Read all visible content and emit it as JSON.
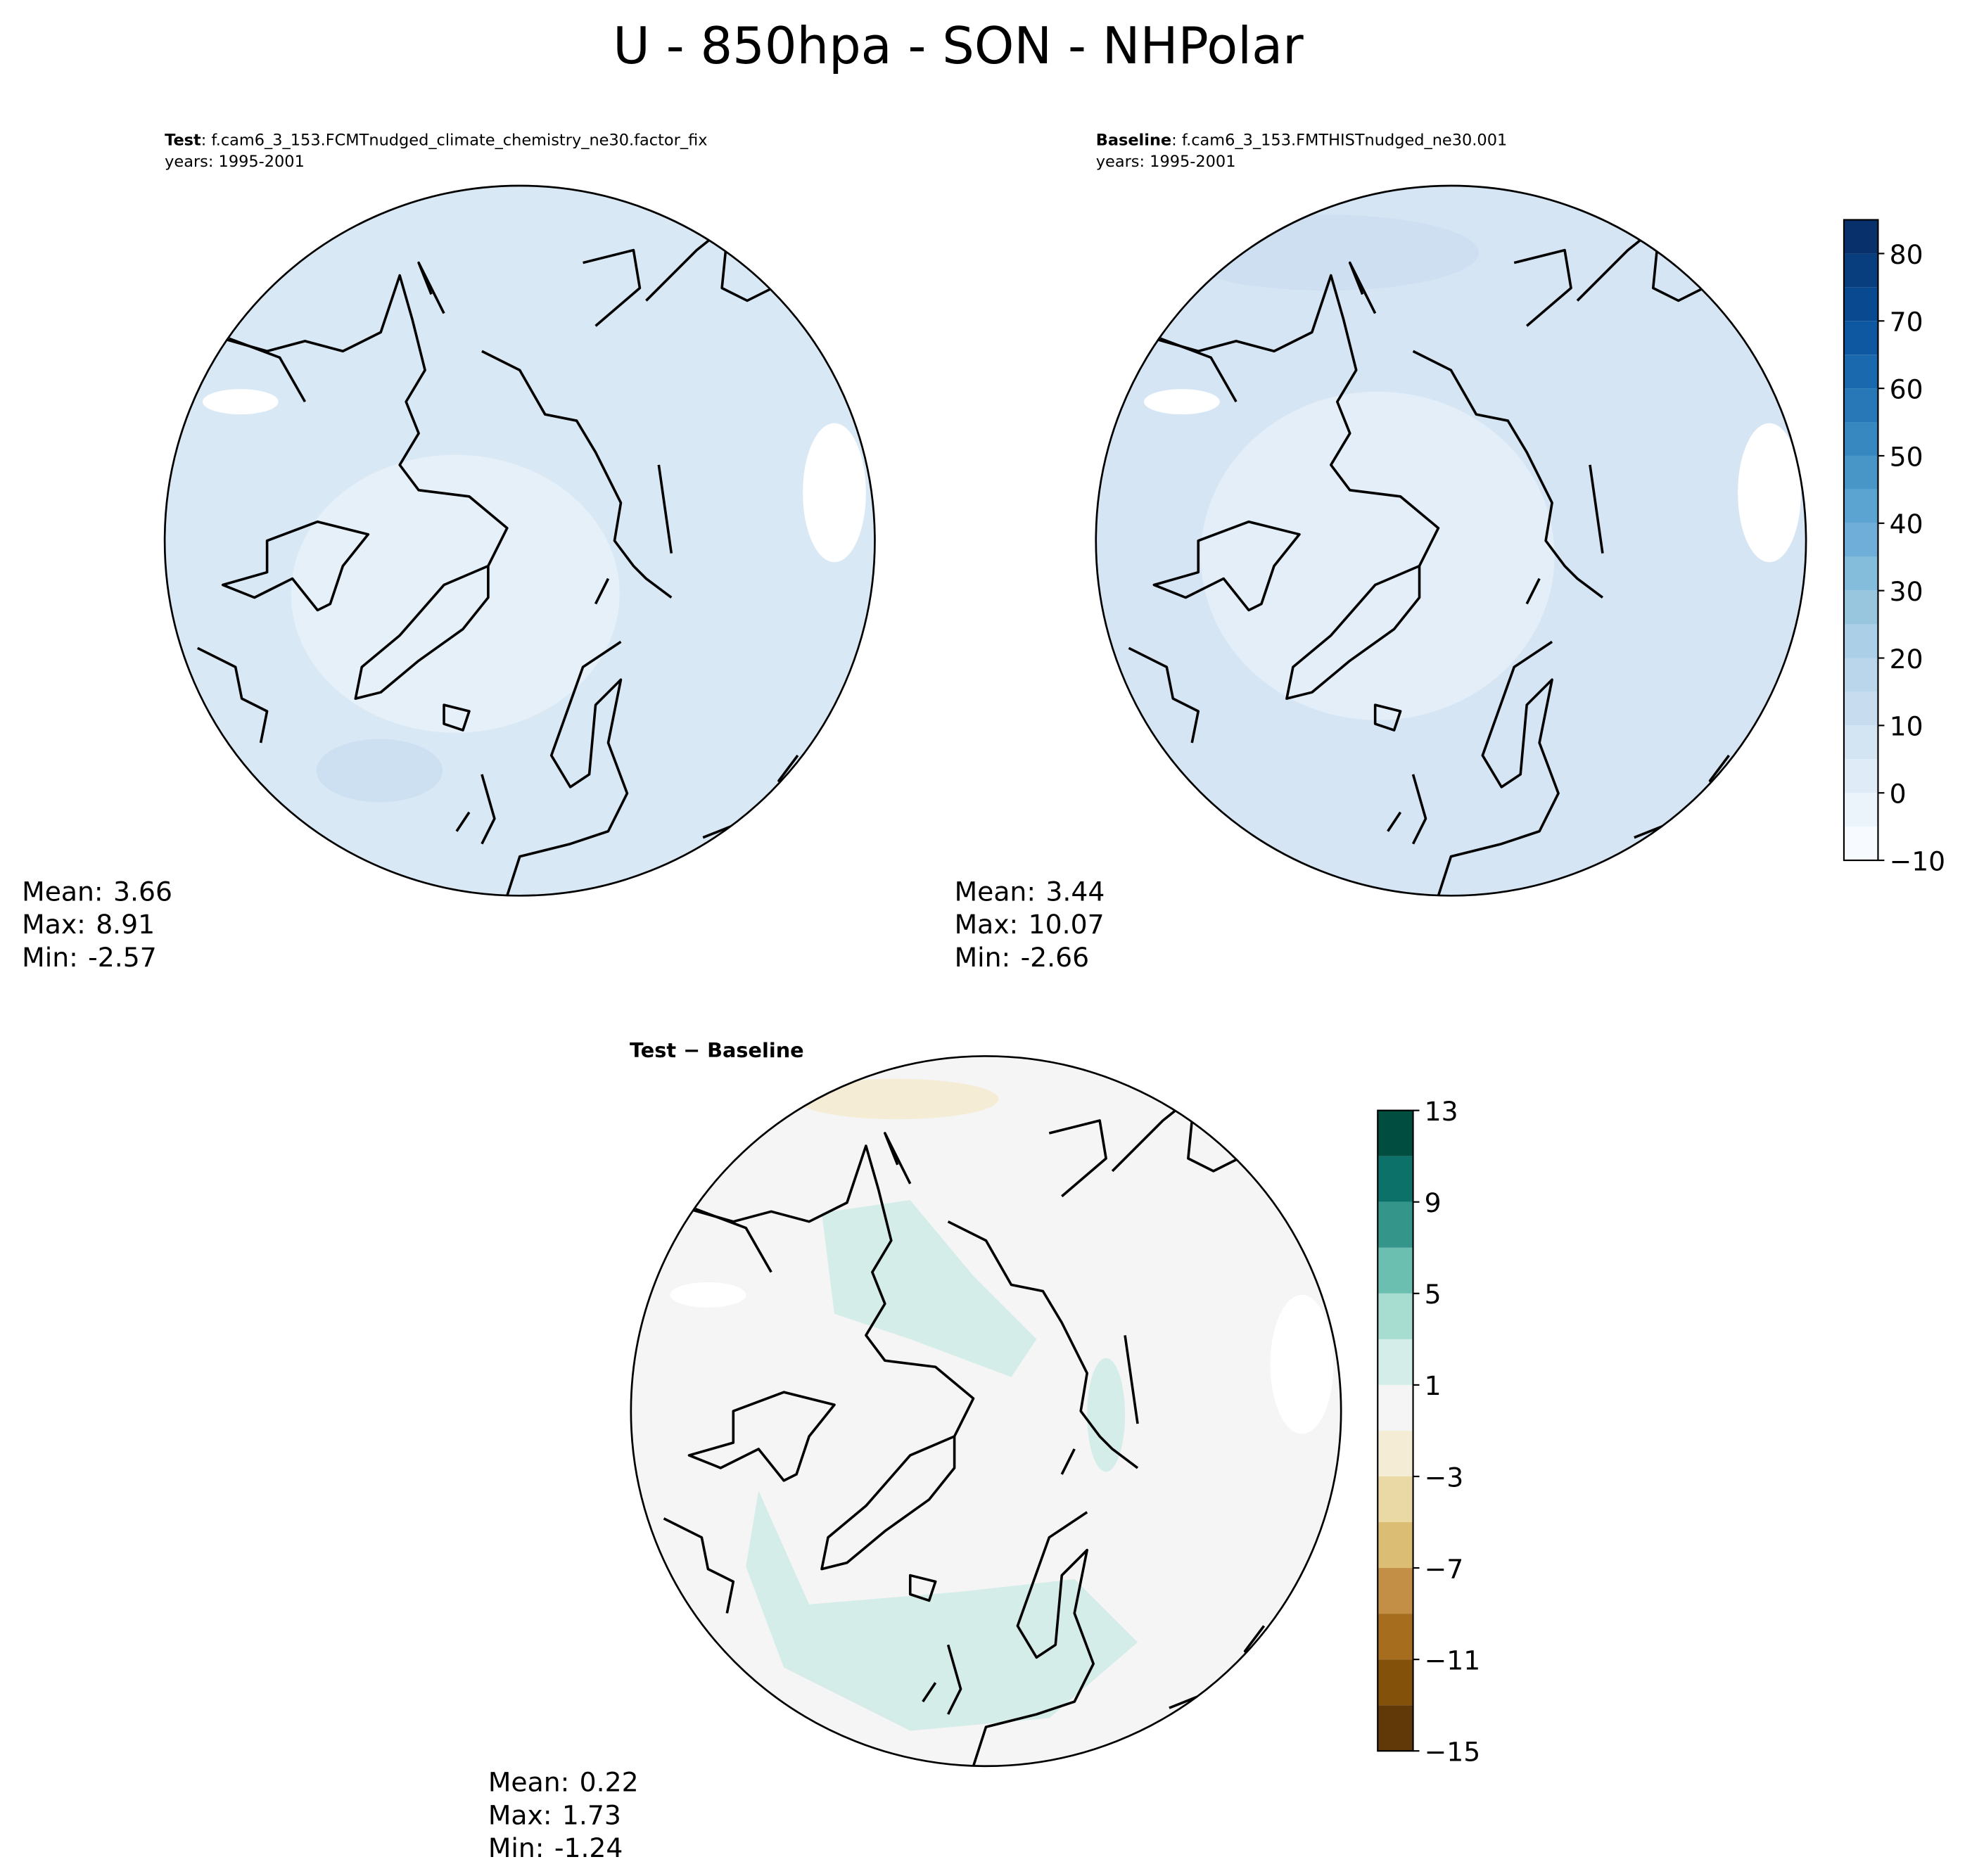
{
  "title": "U - 850hpa - SON - NHPolar",
  "panels": [
    {
      "label": "Test",
      "case": ": f.cam6_3_153.FCMTnudged_climate_chemistry_ne30.factor_fix",
      "years": "years: 1995-2001",
      "stats": [
        {
          "label": "Mean:",
          "value": 3.66
        },
        {
          "label": "Max:",
          "value": 8.91
        },
        {
          "label": "Min:",
          "value": -2.57
        }
      ]
    },
    {
      "label": "Baseline",
      "case": ": f.cam6_3_153.FMTHISTnudged_ne30.001",
      "years": "years: 1995-2001",
      "stats": [
        {
          "label": "Mean:",
          "value": 3.44
        },
        {
          "label": "Max:",
          "value": 10.07
        },
        {
          "label": "Min:",
          "value": -2.66
        }
      ]
    },
    {
      "label": "Test − Baseline",
      "stats": [
        {
          "label": "Mean:",
          "value": 0.22
        },
        {
          "label": "Max:",
          "value": 1.73
        },
        {
          "label": "Min:",
          "value": -1.24
        }
      ]
    }
  ],
  "colorbars": [
    {
      "lim": [
        -10,
        85
      ],
      "levels": [
        -10,
        -5,
        0,
        5,
        10,
        15,
        20,
        25,
        30,
        35,
        40,
        45,
        50,
        55,
        60,
        65,
        70,
        75,
        80,
        85
      ],
      "colors": [
        "#f7fbff",
        "#ebf3fb",
        "#dfebf7",
        "#d3e4f3",
        "#c8dcf0",
        "#bad6eb",
        "#abcfe6",
        "#98c6df",
        "#84bcdb",
        "#6eaed8",
        "#5ba3d0",
        "#4896c8",
        "#3787c0",
        "#2878b8",
        "#1a68ae",
        "#0d58a1",
        "#084990",
        "#083d7e",
        "#08306b"
      ],
      "ticks": [
        {
          "value": -10,
          "label": "−10"
        },
        0,
        10,
        20,
        30,
        40,
        50,
        60,
        70,
        80
      ]
    },
    {
      "lim": [
        -15,
        13
      ],
      "levels": [
        -15,
        -13,
        -11,
        -9,
        -7,
        -5,
        -3,
        -1,
        1,
        3,
        5,
        7,
        9,
        11,
        13
      ],
      "colors": [
        "#613909",
        "#84510b",
        "#a66d1f",
        "#c38f47",
        "#dbbe74",
        "#ebd9a5",
        "#f5ecd6",
        "#f4f5f4",
        "#d4ede8",
        "#a7dcd1",
        "#6bbfb0",
        "#34958b",
        "#0b7169",
        "#014d40"
      ],
      "ticks": [
        {
          "value": -15,
          "label": "−15"
        },
        {
          "value": -11,
          "label": "−11"
        },
        {
          "value": -7,
          "label": "−7"
        },
        {
          "value": -3,
          "label": "−3"
        },
        1,
        5,
        9,
        13
      ]
    }
  ]
}
